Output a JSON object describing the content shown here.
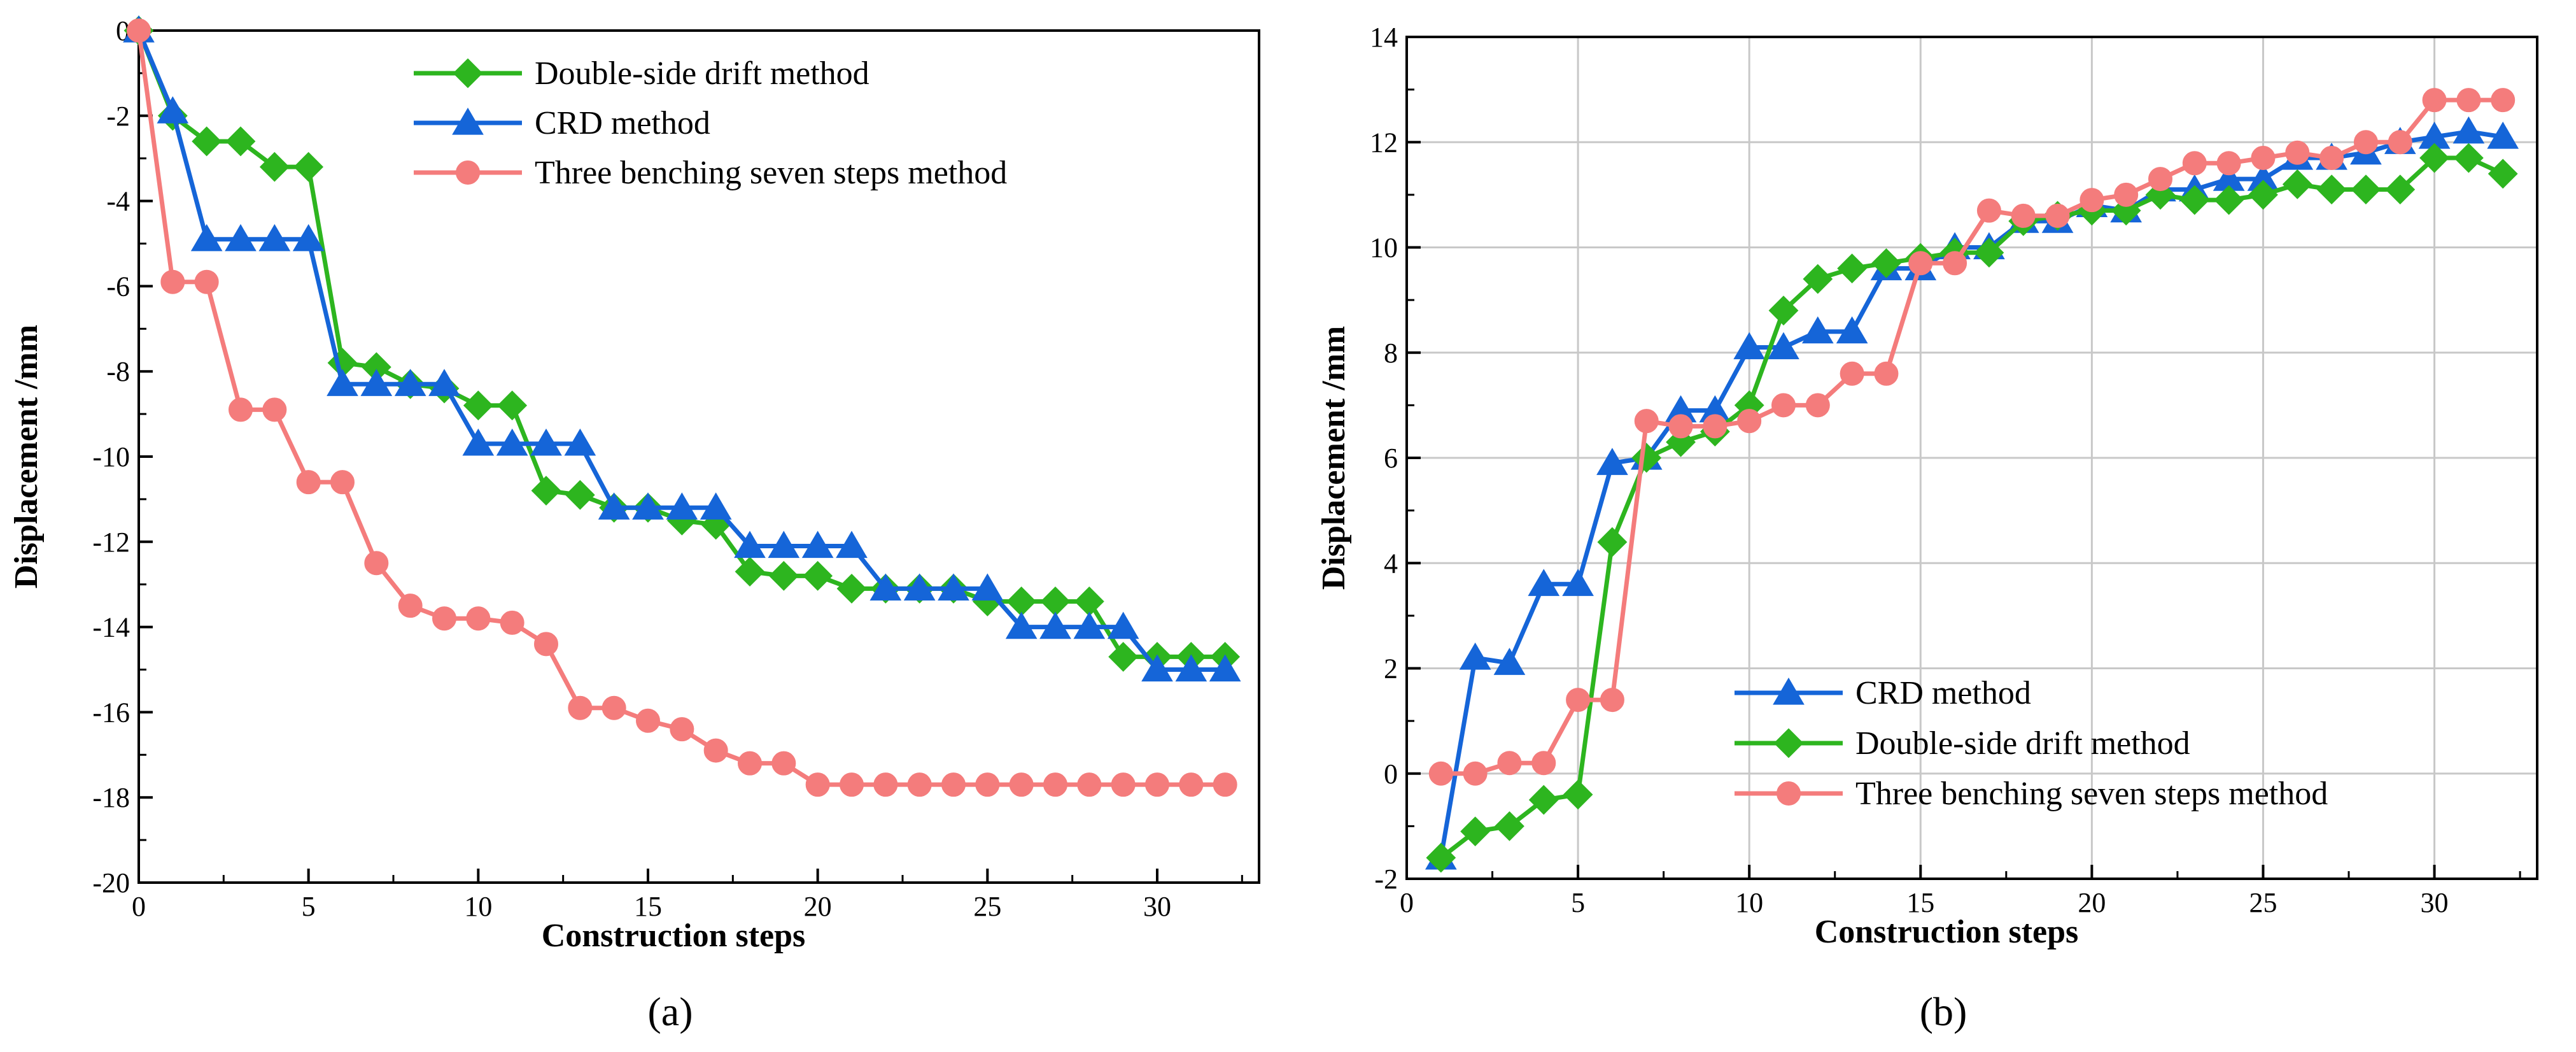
{
  "chart_data": [
    {
      "type": "line",
      "panel_label": "(a)",
      "title": "",
      "xlabel": "Construction steps",
      "ylabel": "Displacement /mm",
      "xlim": [
        0,
        33
      ],
      "ylim": [
        -20,
        0
      ],
      "x_ticks": [
        0,
        5,
        10,
        15,
        20,
        25,
        30
      ],
      "y_ticks": [
        0,
        -2,
        -4,
        -6,
        -8,
        -10,
        -12,
        -14,
        -16,
        -18,
        -20
      ],
      "grid": false,
      "legend_position": "top-center",
      "series": [
        {
          "name": "Double-side drift method",
          "color": "#2db51f",
          "marker": "diamond",
          "x": [
            0,
            1,
            2,
            3,
            4,
            5,
            6,
            7,
            8,
            9,
            10,
            11,
            12,
            13,
            14,
            15,
            16,
            17,
            18,
            19,
            20,
            21,
            22,
            23,
            24,
            25,
            26,
            27,
            28,
            29,
            30,
            31,
            32
          ],
          "values": [
            0,
            -2.0,
            -2.6,
            -2.6,
            -3.2,
            -3.2,
            -7.8,
            -7.9,
            -8.3,
            -8.4,
            -8.8,
            -8.8,
            -10.8,
            -10.9,
            -11.2,
            -11.2,
            -11.5,
            -11.6,
            -12.7,
            -12.8,
            -12.8,
            -13.1,
            -13.1,
            -13.1,
            -13.1,
            -13.4,
            -13.4,
            -13.4,
            -13.4,
            -14.7,
            -14.7,
            -14.7,
            -14.7
          ]
        },
        {
          "name": "CRD method",
          "color": "#1565d8",
          "marker": "triangle",
          "x": [
            0,
            1,
            2,
            3,
            4,
            5,
            6,
            7,
            8,
            9,
            10,
            11,
            12,
            13,
            14,
            15,
            16,
            17,
            18,
            19,
            20,
            21,
            22,
            23,
            24,
            25,
            26,
            27,
            28,
            29,
            30,
            31,
            32
          ],
          "values": [
            0,
            -1.9,
            -4.9,
            -4.9,
            -4.9,
            -4.9,
            -8.3,
            -8.3,
            -8.3,
            -8.3,
            -9.7,
            -9.7,
            -9.7,
            -9.7,
            -11.2,
            -11.2,
            -11.2,
            -11.2,
            -12.1,
            -12.1,
            -12.1,
            -12.1,
            -13.1,
            -13.1,
            -13.1,
            -13.1,
            -14.0,
            -14.0,
            -14.0,
            -14.0,
            -15.0,
            -15.0,
            -15.0
          ]
        },
        {
          "name": "Three benching seven steps method",
          "color": "#f47c7c",
          "marker": "circle",
          "x": [
            0,
            1,
            2,
            3,
            4,
            5,
            6,
            7,
            8,
            9,
            10,
            11,
            12,
            13,
            14,
            15,
            16,
            17,
            18,
            19,
            20,
            21,
            22,
            23,
            24,
            25,
            26,
            27,
            28,
            29,
            30,
            31,
            32
          ],
          "values": [
            0,
            -5.9,
            -5.9,
            -8.9,
            -8.9,
            -10.6,
            -10.6,
            -12.5,
            -13.5,
            -13.8,
            -13.8,
            -13.9,
            -14.4,
            -15.9,
            -15.9,
            -16.2,
            -16.4,
            -16.9,
            -17.2,
            -17.2,
            -17.7,
            -17.7,
            -17.7,
            -17.7,
            -17.7,
            -17.7,
            -17.7,
            -17.7,
            -17.7,
            -17.7,
            -17.7,
            -17.7,
            -17.7
          ]
        }
      ]
    },
    {
      "type": "line",
      "panel_label": "(b)",
      "title": "",
      "xlabel": "Construction steps",
      "ylabel": "Displacement /mm",
      "xlim": [
        0,
        33
      ],
      "ylim": [
        -2,
        14
      ],
      "x_ticks": [
        0,
        5,
        10,
        15,
        20,
        25,
        30
      ],
      "y_ticks": [
        -2,
        0,
        2,
        4,
        6,
        8,
        10,
        12,
        14
      ],
      "grid": true,
      "legend_position": "bottom-center",
      "series": [
        {
          "name": "CRD method",
          "color": "#1565d8",
          "marker": "triangle",
          "x": [
            1,
            2,
            3,
            4,
            5,
            6,
            7,
            8,
            9,
            10,
            11,
            12,
            13,
            14,
            15,
            16,
            17,
            18,
            19,
            20,
            21,
            22,
            23,
            24,
            25,
            26,
            27,
            28,
            29,
            30,
            31,
            32
          ],
          "values": [
            -1.6,
            2.2,
            2.1,
            3.6,
            3.6,
            5.9,
            6.0,
            6.9,
            6.9,
            8.1,
            8.1,
            8.4,
            8.4,
            9.6,
            9.6,
            10.0,
            10.0,
            10.5,
            10.5,
            10.8,
            10.7,
            11.1,
            11.1,
            11.3,
            11.3,
            11.7,
            11.7,
            11.8,
            12.0,
            12.1,
            12.2,
            12.1
          ]
        },
        {
          "name": "Double-side drift method",
          "color": "#2db51f",
          "marker": "diamond",
          "x": [
            1,
            2,
            3,
            4,
            5,
            6,
            7,
            8,
            9,
            10,
            11,
            12,
            13,
            14,
            15,
            16,
            17,
            18,
            19,
            20,
            21,
            22,
            23,
            24,
            25,
            26,
            27,
            28,
            29,
            30,
            31,
            32
          ],
          "values": [
            -1.6,
            -1.1,
            -1.0,
            -0.5,
            -0.4,
            4.4,
            6.0,
            6.3,
            6.5,
            7.0,
            8.8,
            9.4,
            9.6,
            9.7,
            9.8,
            9.9,
            9.9,
            10.5,
            10.6,
            10.7,
            10.7,
            11.0,
            10.9,
            10.9,
            11.0,
            11.2,
            11.1,
            11.1,
            11.1,
            11.7,
            11.7,
            11.4
          ]
        },
        {
          "name": "Three benching seven steps method",
          "color": "#f47c7c",
          "marker": "circle",
          "x": [
            1,
            2,
            3,
            4,
            5,
            6,
            7,
            8,
            9,
            10,
            11,
            12,
            13,
            14,
            15,
            16,
            17,
            18,
            19,
            20,
            21,
            22,
            23,
            24,
            25,
            26,
            27,
            28,
            29,
            30,
            31,
            32
          ],
          "values": [
            0.0,
            0.0,
            0.2,
            0.2,
            1.4,
            1.4,
            6.7,
            6.6,
            6.6,
            6.7,
            7.0,
            7.0,
            7.6,
            7.6,
            9.7,
            9.7,
            10.7,
            10.6,
            10.6,
            10.9,
            11.0,
            11.3,
            11.6,
            11.6,
            11.7,
            11.8,
            11.7,
            12.0,
            12.0,
            12.8,
            12.8,
            12.8
          ]
        }
      ]
    }
  ]
}
